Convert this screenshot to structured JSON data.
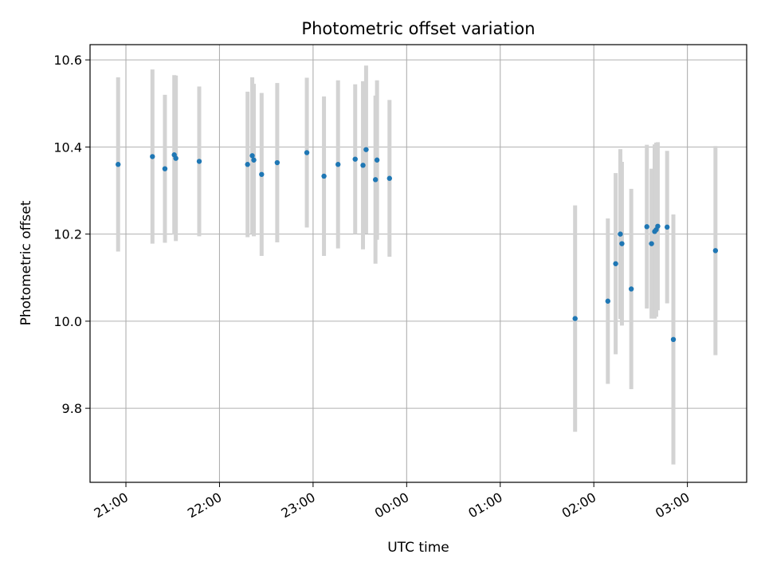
{
  "chart_data": {
    "type": "scatter",
    "title": "Photometric offset variation",
    "xlabel": "UTC time",
    "ylabel": "Photometric offset",
    "x_ticks": [
      "21:00",
      "22:00",
      "23:00",
      "00:00",
      "01:00",
      "02:00",
      "03:00"
    ],
    "y_ticks": [
      "9.8",
      "10.0",
      "10.2",
      "10.4",
      "10.6"
    ],
    "xlim": [
      "20:37",
      "03:38"
    ],
    "ylim": [
      9.63,
      10.635
    ],
    "grid": true,
    "colors": {
      "point": "#1f77b4",
      "errorbar": "#d3d3d3",
      "grid": "#b0b0b0"
    },
    "series": [
      {
        "points": [
          {
            "x": "20:55",
            "y": 10.36,
            "err": 0.2
          },
          {
            "x": "21:17",
            "y": 10.378,
            "err": 0.2
          },
          {
            "x": "21:25",
            "y": 10.35,
            "err": 0.17
          },
          {
            "x": "21:31",
            "y": 10.382,
            "err": 0.183
          },
          {
            "x": "21:32",
            "y": 10.374,
            "err": 0.19
          },
          {
            "x": "21:47",
            "y": 10.367,
            "err": 0.172
          },
          {
            "x": "22:18",
            "y": 10.36,
            "err": 0.167
          },
          {
            "x": "22:21",
            "y": 10.38,
            "err": 0.18
          },
          {
            "x": "22:22",
            "y": 10.37,
            "err": 0.175
          },
          {
            "x": "22:27",
            "y": 10.337,
            "err": 0.187
          },
          {
            "x": "22:37",
            "y": 10.364,
            "err": 0.183
          },
          {
            "x": "22:56",
            "y": 10.387,
            "err": 0.172
          },
          {
            "x": "23:07",
            "y": 10.333,
            "err": 0.183
          },
          {
            "x": "23:16",
            "y": 10.36,
            "err": 0.193
          },
          {
            "x": "23:27",
            "y": 10.372,
            "err": 0.172
          },
          {
            "x": "23:32",
            "y": 10.358,
            "err": 0.193
          },
          {
            "x": "23:34",
            "y": 10.394,
            "err": 0.193
          },
          {
            "x": "23:40",
            "y": 10.325,
            "err": 0.193
          },
          {
            "x": "23:41",
            "y": 10.37,
            "err": 0.183
          },
          {
            "x": "23:49",
            "y": 10.328,
            "err": 0.18
          },
          {
            "x": "01:48",
            "y": 10.006,
            "err": 0.26
          },
          {
            "x": "02:09",
            "y": 10.046,
            "err": 0.19
          },
          {
            "x": "02:14",
            "y": 10.132,
            "err": 0.208
          },
          {
            "x": "02:17",
            "y": 10.2,
            "err": 0.195
          },
          {
            "x": "02:18",
            "y": 10.178,
            "err": 0.188
          },
          {
            "x": "02:24",
            "y": 10.074,
            "err": 0.23
          },
          {
            "x": "02:34",
            "y": 10.217,
            "err": 0.188
          },
          {
            "x": "02:37",
            "y": 10.178,
            "err": 0.172
          },
          {
            "x": "02:39",
            "y": 10.206,
            "err": 0.2
          },
          {
            "x": "02:40",
            "y": 10.21,
            "err": 0.2
          },
          {
            "x": "02:41",
            "y": 10.218,
            "err": 0.193
          },
          {
            "x": "02:47",
            "y": 10.216,
            "err": 0.175
          },
          {
            "x": "02:51",
            "y": 9.958,
            "err": 0.287
          },
          {
            "x": "03:18",
            "y": 10.162,
            "err": 0.24
          }
        ]
      }
    ]
  }
}
